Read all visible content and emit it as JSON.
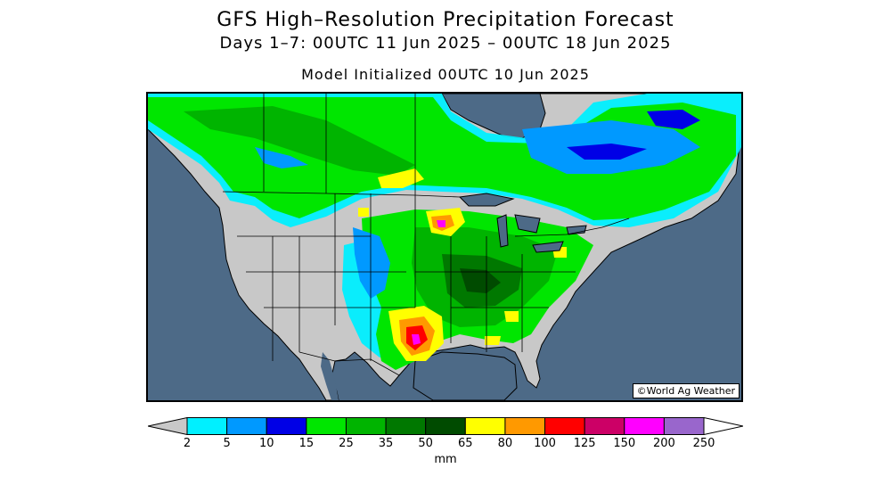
{
  "header": {
    "title": "GFS High–Resolution Precipitation Forecast",
    "subtitle": "Days 1–7: 00UTC 11 Jun 2025 – 00UTC 18 Jun 2025",
    "init": "Model Initialized 00UTC 10 Jun 2025"
  },
  "map": {
    "credit": "©World Ag Weather",
    "colors": {
      "ocean": "#4d6a87",
      "dry_land": "#c8c8c8",
      "border": "#000000"
    }
  },
  "legend": {
    "unit": "mm",
    "ticks": [
      "2",
      "5",
      "10",
      "15",
      "25",
      "35",
      "50",
      "65",
      "80",
      "100",
      "125",
      "150",
      "200",
      "250"
    ],
    "bins": [
      {
        "from": "2",
        "to": "5",
        "color": "#00f0ff"
      },
      {
        "from": "5",
        "to": "10",
        "color": "#0099ff"
      },
      {
        "from": "10",
        "to": "15",
        "color": "#0000e6"
      },
      {
        "from": "15",
        "to": "25",
        "color": "#00e600"
      },
      {
        "from": "25",
        "to": "35",
        "color": "#00b400"
      },
      {
        "from": "35",
        "to": "50",
        "color": "#007800"
      },
      {
        "from": "50",
        "to": "65",
        "color": "#004b00"
      },
      {
        "from": "65",
        "to": "80",
        "color": "#ffff00"
      },
      {
        "from": "80",
        "to": "100",
        "color": "#ff9900"
      },
      {
        "from": "100",
        "to": "125",
        "color": "#ff0000"
      },
      {
        "from": "125",
        "to": "150",
        "color": "#cc0066"
      },
      {
        "from": "150",
        "to": "200",
        "color": "#ff00ff"
      },
      {
        "from": "200",
        "to": "250",
        "color": "#9966cc"
      }
    ],
    "below_color": "#c8c8c8",
    "above_color": "#ffffff"
  }
}
